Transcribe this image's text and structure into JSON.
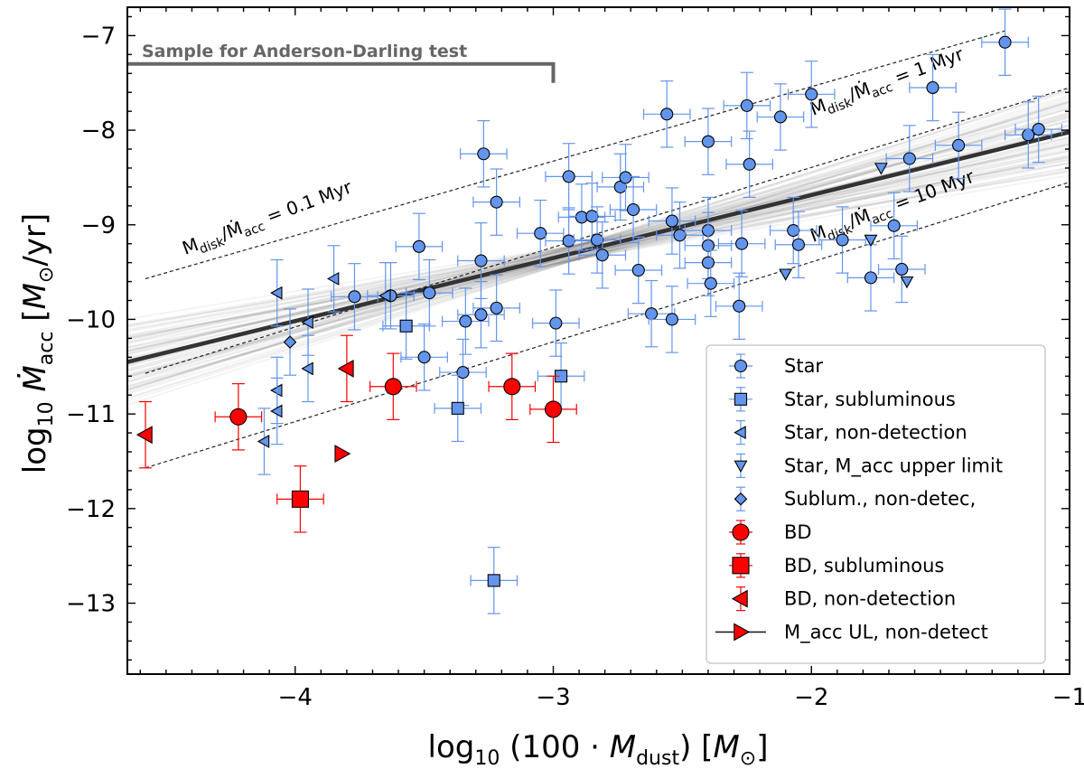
{
  "chart_data": {
    "type": "scatter",
    "xlabel": "log₁₀ (100 · M_dust) [M⊙]",
    "ylabel": "log₁₀ Ṁ_acc [M⊙/yr]",
    "xlim": [
      -4.65,
      -1.0
    ],
    "ylim": [
      -13.75,
      -6.7
    ],
    "xticks": [
      -4,
      -3,
      -2,
      -1
    ],
    "xtick_labels": [
      "−4",
      "−3",
      "−2",
      "−1"
    ],
    "yticks": [
      -13,
      -12,
      -11,
      -10,
      -9,
      -8,
      -7
    ],
    "ytick_labels": [
      "−13",
      "−12",
      "−11",
      "−10",
      "−9",
      "−8",
      "−7"
    ],
    "fit_line": {
      "x": [
        -4.65,
        -1.0
      ],
      "y": [
        -10.45,
        -8.02
      ]
    },
    "reference_lines": [
      {
        "label": "M_disk/Ṁ_acc = 0.1 Myr",
        "x": [
          -4.58,
          -1.25
        ],
        "y": [
          -9.57,
          -6.95
        ]
      },
      {
        "label": "M_disk/Ṁ_acc = 1 Myr",
        "x": [
          -4.58,
          -1.0
        ],
        "y": [
          -10.57,
          -7.55
        ]
      },
      {
        "label": "M_disk/Ṁ_acc = 10 Myr",
        "x": [
          -4.58,
          -1.0
        ],
        "y": [
          -11.57,
          -8.55
        ]
      }
    ],
    "annotation": {
      "text": "Sample for Anderson-Darling test",
      "x_start": -4.65,
      "x_end": -3.0,
      "y": -7.3,
      "y_tick_end": -7.5
    },
    "legend": [
      {
        "label": "Star",
        "marker": "circle",
        "color": "#6495ED"
      },
      {
        "label": "Star, subluminous",
        "marker": "square",
        "color": "#6495ED"
      },
      {
        "label": "Star, non-detection",
        "marker": "tri-left",
        "color": "#6495ED"
      },
      {
        "label": "Star, M_acc upper limit",
        "marker": "tri-down",
        "color": "#6495ED"
      },
      {
        "label": "Sublum., non-detec,",
        "marker": "diamond",
        "color": "#6495ED"
      },
      {
        "label": "BD",
        "marker": "circle",
        "color": "#FF0000"
      },
      {
        "label": "BD, subluminous",
        "marker": "square",
        "color": "#FF0000"
      },
      {
        "label": "BD, non-detection",
        "marker": "tri-left",
        "color": "#FF0000"
      },
      {
        "label": "M_acc UL, non-detect",
        "marker": "tri-right",
        "color": "#FF0000"
      }
    ],
    "series": [
      {
        "name": "Star",
        "marker": "circle",
        "color": "#6495ED",
        "size": 13,
        "xerr": 0.09,
        "points": [
          [
            -3.27,
            -8.25,
            0.35
          ],
          [
            -3.22,
            -8.76,
            0.35
          ],
          [
            -3.28,
            -9.38,
            0.4
          ],
          [
            -3.52,
            -9.23,
            0.35
          ],
          [
            -3.77,
            -9.76,
            0.35
          ],
          [
            -3.63,
            -9.75,
            0.35
          ],
          [
            -3.48,
            -9.72,
            0.35
          ],
          [
            -3.34,
            -10.02,
            0.35
          ],
          [
            -3.28,
            -9.95,
            0.35
          ],
          [
            -3.22,
            -9.88,
            0.35
          ],
          [
            -3.05,
            -9.09,
            0.35
          ],
          [
            -2.99,
            -10.04,
            0.35
          ],
          [
            -3.35,
            -10.56,
            0.35
          ],
          [
            -3.5,
            -10.4,
            0.35
          ],
          [
            -2.94,
            -8.49,
            0.35
          ],
          [
            -2.89,
            -8.92,
            0.35
          ],
          [
            -2.85,
            -8.91,
            0.35
          ],
          [
            -2.94,
            -9.17,
            0.35
          ],
          [
            -2.83,
            -9.16,
            0.35
          ],
          [
            -2.81,
            -9.32,
            0.35
          ],
          [
            -2.74,
            -8.6,
            0.35
          ],
          [
            -2.72,
            -8.5,
            0.35
          ],
          [
            -2.69,
            -8.84,
            0.35
          ],
          [
            -2.67,
            -9.48,
            0.35
          ],
          [
            -2.62,
            -9.94,
            0.35
          ],
          [
            -2.56,
            -7.83,
            0.35
          ],
          [
            -2.54,
            -8.96,
            0.35
          ],
          [
            -2.51,
            -9.11,
            0.35
          ],
          [
            -2.54,
            -10.0,
            0.35
          ],
          [
            -2.4,
            -8.12,
            0.35
          ],
          [
            -2.4,
            -9.06,
            0.35
          ],
          [
            -2.4,
            -9.22,
            0.35
          ],
          [
            -2.4,
            -9.4,
            0.35
          ],
          [
            -2.39,
            -9.62,
            0.35
          ],
          [
            -2.27,
            -9.2,
            0.35
          ],
          [
            -2.28,
            -9.86,
            0.35
          ],
          [
            -2.25,
            -7.74,
            0.35
          ],
          [
            -2.24,
            -8.36,
            0.35
          ],
          [
            -2.12,
            -7.86,
            0.35
          ],
          [
            -2.0,
            -7.62,
            0.35
          ],
          [
            -2.07,
            -9.06,
            0.35
          ],
          [
            -2.05,
            -9.21,
            0.35
          ],
          [
            -1.88,
            -9.16,
            0.35
          ],
          [
            -1.77,
            -9.56,
            0.35
          ],
          [
            -1.68,
            -9.01,
            0.35
          ],
          [
            -1.65,
            -9.47,
            0.35
          ],
          [
            -1.62,
            -8.3,
            0.35
          ],
          [
            -1.53,
            -7.55,
            0.35
          ],
          [
            -1.43,
            -8.16,
            0.35
          ],
          [
            -1.25,
            -7.07,
            0.35
          ],
          [
            -1.16,
            -8.05,
            0.35
          ],
          [
            -1.12,
            -7.99,
            0.35
          ]
        ]
      },
      {
        "name": "Star, subluminous",
        "marker": "square",
        "color": "#6495ED",
        "size": 13,
        "xerr": 0.09,
        "points": [
          [
            -3.57,
            -10.07,
            0.35
          ],
          [
            -3.37,
            -10.94,
            0.35
          ],
          [
            -2.97,
            -10.6,
            0.35
          ],
          [
            -3.23,
            -12.76,
            0.35
          ]
        ]
      },
      {
        "name": "Star, non-detection",
        "marker": "tri-left",
        "color": "#6495ED",
        "size": 13,
        "xerr": 0,
        "points": [
          [
            -4.07,
            -9.72,
            0.35
          ],
          [
            -4.07,
            -10.75,
            0.35
          ],
          [
            -4.07,
            -10.97,
            0.35
          ],
          [
            -4.12,
            -11.29,
            0.35
          ],
          [
            -3.95,
            -10.52,
            0.35
          ],
          [
            -3.95,
            -10.03,
            0.35
          ],
          [
            -3.85,
            -9.57,
            0.35
          ],
          [
            -3.65,
            -9.75,
            0.35
          ]
        ]
      },
      {
        "name": "Star, M_acc upper limit",
        "marker": "tri-down",
        "color": "#6495ED",
        "size": 13,
        "xerr": 0,
        "points": [
          [
            -2.1,
            -9.52,
            0.0
          ],
          [
            -1.73,
            -8.4,
            0.0
          ],
          [
            -1.77,
            -9.16,
            0.0
          ],
          [
            -1.63,
            -9.6,
            0.0
          ]
        ]
      },
      {
        "name": "Sublum., non-detec,",
        "marker": "diamond",
        "color": "#6495ED",
        "size": 13,
        "xerr": 0,
        "points": [
          [
            -4.02,
            -10.24,
            0.35
          ]
        ]
      },
      {
        "name": "BD",
        "marker": "circle",
        "color": "#FF0000",
        "size": 18,
        "xerr": 0.09,
        "points": [
          [
            -4.22,
            -11.03,
            0.35
          ],
          [
            -3.62,
            -10.71,
            0.35
          ],
          [
            -3.16,
            -10.71,
            0.35
          ],
          [
            -3.0,
            -10.95,
            0.35
          ]
        ]
      },
      {
        "name": "BD, subluminous",
        "marker": "square",
        "color": "#FF0000",
        "size": 18,
        "xerr": 0.09,
        "points": [
          [
            -3.98,
            -11.9,
            0.35
          ]
        ]
      },
      {
        "name": "BD, non-detection",
        "marker": "tri-left",
        "color": "#FF0000",
        "size": 18,
        "xerr": 0,
        "points": [
          [
            -4.58,
            -11.22,
            0.35
          ],
          [
            -3.8,
            -10.52,
            0.35
          ]
        ]
      },
      {
        "name": "M_acc UL, non-detect",
        "marker": "tri-right",
        "color": "#FF0000",
        "size": 18,
        "xerr": 0,
        "points": [
          [
            -3.82,
            -11.42,
            0.0
          ]
        ]
      }
    ]
  }
}
